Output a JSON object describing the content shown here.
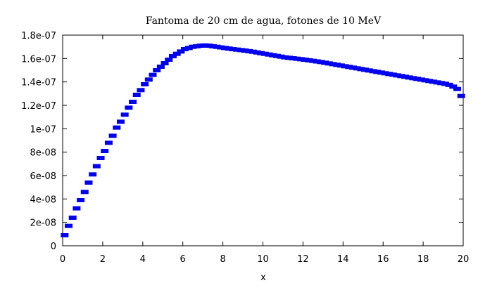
{
  "chart_data": {
    "type": "scatter",
    "title": "Fantoma de 20 cm de agua, fotones de 10 MeV",
    "xlabel": "x",
    "ylabel": "",
    "xlim": [
      0,
      20
    ],
    "ylim": [
      0,
      1.8e-07
    ],
    "xticks": [
      0,
      2,
      4,
      6,
      8,
      10,
      12,
      14,
      16,
      18,
      20
    ],
    "xtick_labels": [
      "0",
      "2",
      "4",
      "6",
      "8",
      "10",
      "12",
      "14",
      "16",
      "18",
      "20"
    ],
    "yticks": [
      0,
      2e-08,
      4e-08,
      6e-08,
      8e-08,
      1e-07,
      1.2e-07,
      1.4e-07,
      1.6e-07,
      1.8e-07
    ],
    "ytick_labels": [
      "0",
      "2e-08",
      "4e-08",
      "6e-08",
      "8e-08",
      "1e-07",
      "1.2e-07",
      "1.4e-07",
      "1.6e-07",
      "1.8e-07"
    ],
    "grid": false,
    "marker_color": "#0000ee",
    "series": [
      {
        "x": [
          0.1,
          0.3,
          0.5,
          0.7,
          0.9,
          1.1,
          1.3,
          1.5,
          1.7,
          1.9,
          2.1,
          2.3,
          2.5,
          2.7,
          2.9,
          3.1,
          3.3,
          3.5,
          3.7,
          3.9,
          4.1,
          4.3,
          4.5,
          4.7,
          4.9,
          5.1,
          5.3,
          5.5,
          5.7,
          5.9,
          6.1,
          6.3,
          6.5,
          6.7,
          6.9,
          7.1,
          7.3,
          7.5,
          7.7,
          7.9,
          8.1,
          8.3,
          8.5,
          8.7,
          8.9,
          9.1,
          9.3,
          9.5,
          9.7,
          9.9,
          10.1,
          10.3,
          10.5,
          10.7,
          10.9,
          11.1,
          11.3,
          11.5,
          11.7,
          11.9,
          12.1,
          12.3,
          12.5,
          12.7,
          12.9,
          13.1,
          13.3,
          13.5,
          13.7,
          13.9,
          14.1,
          14.3,
          14.5,
          14.7,
          14.9,
          15.1,
          15.3,
          15.5,
          15.7,
          15.9,
          16.1,
          16.3,
          16.5,
          16.7,
          16.9,
          17.1,
          17.3,
          17.5,
          17.7,
          17.9,
          18.1,
          18.3,
          18.5,
          18.7,
          18.9,
          19.1,
          19.3,
          19.5,
          19.7,
          19.9
        ],
        "y": [
          9e-09,
          1.7e-08,
          2.4e-08,
          3.2e-08,
          3.9e-08,
          4.6e-08,
          5.4e-08,
          6.1e-08,
          6.8e-08,
          7.5e-08,
          8.1e-08,
          8.8e-08,
          9.4e-08,
          1.01e-07,
          1.06e-07,
          1.12e-07,
          1.18e-07,
          1.23e-07,
          1.29e-07,
          1.33e-07,
          1.38e-07,
          1.42e-07,
          1.46e-07,
          1.5e-07,
          1.53e-07,
          1.56e-07,
          1.59e-07,
          1.62e-07,
          1.64e-07,
          1.66e-07,
          1.68e-07,
          1.69e-07,
          1.7e-07,
          1.705e-07,
          1.71e-07,
          1.712e-07,
          1.71e-07,
          1.705e-07,
          1.7e-07,
          1.695e-07,
          1.69e-07,
          1.685e-07,
          1.68e-07,
          1.676e-07,
          1.672e-07,
          1.668e-07,
          1.663e-07,
          1.658e-07,
          1.652e-07,
          1.646e-07,
          1.64e-07,
          1.634e-07,
          1.628e-07,
          1.622e-07,
          1.616e-07,
          1.61e-07,
          1.606e-07,
          1.602e-07,
          1.598e-07,
          1.594e-07,
          1.59e-07,
          1.585e-07,
          1.58e-07,
          1.575e-07,
          1.57e-07,
          1.564e-07,
          1.558e-07,
          1.552e-07,
          1.546e-07,
          1.54e-07,
          1.534e-07,
          1.528e-07,
          1.522e-07,
          1.516e-07,
          1.51e-07,
          1.504e-07,
          1.498e-07,
          1.492e-07,
          1.486e-07,
          1.48e-07,
          1.474e-07,
          1.468e-07,
          1.462e-07,
          1.456e-07,
          1.45e-07,
          1.444e-07,
          1.438e-07,
          1.432e-07,
          1.426e-07,
          1.42e-07,
          1.414e-07,
          1.408e-07,
          1.402e-07,
          1.396e-07,
          1.39e-07,
          1.384e-07,
          1.375e-07,
          1.36e-07,
          1.34e-07,
          1.28e-07
        ]
      }
    ]
  }
}
